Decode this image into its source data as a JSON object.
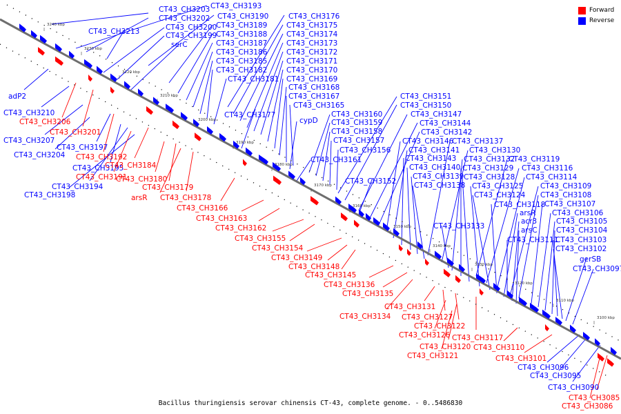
{
  "colors": {
    "forward": "#ff0000",
    "reverse": "#0000ff",
    "backbone": "#777777"
  },
  "legend": {
    "forward": "Forward",
    "reverse": "Reverse"
  },
  "caption": "Bacillus thuringiensis serovar chinensis CT-43, complete genome. - 0..5486830",
  "ticks": [
    "3240 kbp",
    "3230 kbp",
    "3220 kbp",
    "3210 kbp",
    "3200 kbp",
    "3190 kbp",
    "3180 kbp",
    "3170 kbp",
    "3160 kbp",
    "3150 kbp",
    "3140 kbp",
    "3130 kbp",
    "3120 kbp",
    "3110 kbp",
    "3100 kbp"
  ],
  "reverse_labels": [
    "CT43_CH3203",
    "CT43_CH3193",
    "CT43_CH3202",
    "CT43_CH3190",
    "CT43_CH3176",
    "CT43_CH3200",
    "CT43_CH3189",
    "CT43_CH3175",
    "CT43_CH3213",
    "CT43_CH3199",
    "CT43_CH3188",
    "CT43_CH3174",
    "serC",
    "CT43_CH3187",
    "CT43_CH3173",
    "CT43_CH3186",
    "CT43_CH3172",
    "CT43_CH3185",
    "CT43_CH3171",
    "CT43_CH3182",
    "CT43_CH3170",
    "CT43_CH3181",
    "CT43_CH3169",
    "CT43_CH3168",
    "adP2",
    "CT43_CH3167",
    "CT43_CH3151",
    "CT43_CH3165",
    "CT43_CH3150",
    "CT43_CH3210",
    "CT43_CH3177",
    "CT43_CH3147",
    "CT43_CH3160",
    "CT43_CH3159",
    "cypD",
    "CT43_CH3144",
    "CT43_CH3158",
    "CT43_CH3142",
    "CT43_CH3207",
    "CT43_CH3157",
    "CT43_CH3146",
    "CT43_CH3137",
    "CT43_CH3197",
    "CT43_CH3156",
    "CT43_CH3141",
    "CT43_CH3130",
    "CT43_CH3204",
    "CT43_CH3161",
    "CT43_CH3143",
    "CT43_CH3132",
    "CT43_CH3119",
    "CT43_CH3195",
    "CT43_CH3140",
    "CT43_CH3129",
    "CT43_CH3116",
    "CT43_CH3152",
    "CT43_CH3139",
    "CT43_CH3128",
    "CT43_CH3114",
    "CT43_CH3194",
    "CT43_CH3138",
    "CT43_CH3125",
    "CT43_CH3109",
    "CT43_CH3198",
    "CT43_CH3124",
    "CT43_CH3108",
    "CT43_CH3118",
    "CT43_CH3107",
    "arsR",
    "CT43_CH3106",
    "acr3",
    "CT43_CH3105",
    "CT43_CH3133",
    "arsC",
    "CT43_CH3104",
    "CT43_CH3111",
    "CT43_CH3103",
    "CT43_CH3102",
    "gerSB",
    "CT43_CH3097",
    "CT43_CH3096",
    "CT43_CH3095",
    "CT43_CH3090"
  ],
  "forward_labels": [
    "CT43_CH3206",
    "CT43_CH3201",
    "CT43_CH3192",
    "CT43_CH3184",
    "CT43_CH3191",
    "CT43_CH3180",
    "CT43_CH3179",
    "arsR",
    "CT43_CH3178",
    "CT43_CH3166",
    "CT43_CH3163",
    "CT43_CH3162",
    "CT43_CH3155",
    "CT43_CH3154",
    "CT43_CH3149",
    "CT43_CH3148",
    "CT43_CH3145",
    "CT43_CH3136",
    "CT43_CH3135",
    "CT43_CH3131",
    "CT43_CH3134",
    "CT43_CH3127",
    "CT43_CH3122",
    "CT43_CH3126",
    "CT43_CH3117",
    "CT43_CH3120",
    "CT43_CH3110",
    "CT43_CH3121",
    "CT43_CH3101",
    "CT43_CH3085",
    "CT43_CH3086"
  ]
}
